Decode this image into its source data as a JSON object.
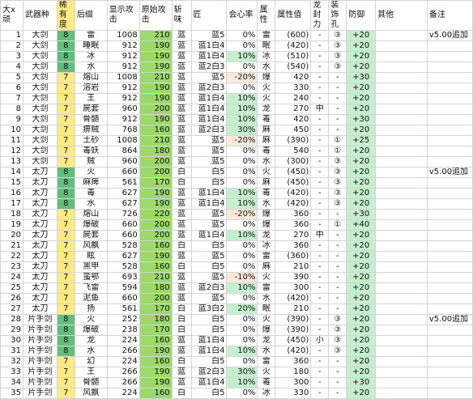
{
  "colors": {
    "rarity8": "#63be7b",
    "rarity7": "#ffeb84",
    "attack_orig": "#9bd96a",
    "affinity_pos": "#c6efce",
    "affinity_neg": "#fde9d9",
    "defense": "#c6efce"
  },
  "headers": [
    "大x顽",
    "武器种",
    "稀有度",
    "后缀",
    "显示攻击",
    "原始攻击",
    "斩味",
    "匠",
    "会心率",
    "属性",
    "属性值",
    "龙封力",
    "装饰孔",
    "防御",
    "其他",
    "备注"
  ],
  "rows": [
    [
      "1",
      "大剑",
      "8",
      "雷",
      "1008",
      "210",
      "蓝",
      "蓝5",
      "0%",
      "雷",
      "(600)",
      "-",
      "③",
      "+20",
      "",
      "v5.00追加"
    ],
    [
      "2",
      "大剑",
      "8",
      "睡眠",
      "912",
      "190",
      "蓝",
      "蓝1白4",
      "0%",
      "眠",
      "(420)",
      "-",
      "③",
      "+20",
      "",
      ""
    ],
    [
      "3",
      "大剑",
      "8",
      "冰",
      "912",
      "190",
      "蓝",
      "蓝1白4",
      "10%",
      "冰",
      "(510)",
      "-",
      "③",
      "+20",
      "",
      ""
    ],
    [
      "4",
      "大剑",
      "8",
      "水",
      "912",
      "190",
      "蓝",
      "蓝2白3",
      "0%",
      "水",
      "(540)",
      "-",
      "③",
      "+20",
      "",
      ""
    ],
    [
      "5",
      "大剑",
      "7",
      "熔山",
      "1008",
      "210",
      "蓝",
      "蓝5",
      "-20%",
      "爆",
      "420",
      "-",
      "-",
      "+30",
      "",
      ""
    ],
    [
      "6",
      "大剑",
      "7",
      "溶岩",
      "912",
      "190",
      "蓝",
      "蓝2白3",
      "0%",
      "火",
      "330",
      "-",
      "-",
      "+20",
      "",
      ""
    ],
    [
      "7",
      "大剑",
      "7",
      "王",
      "912",
      "190",
      "蓝",
      "蓝1白4",
      "10%",
      "火",
      "240",
      "-",
      "-",
      "+20",
      "",
      ""
    ],
    [
      "8",
      "大剑",
      "7",
      "屍套",
      "960",
      "200",
      "蓝",
      "蓝1白4",
      "10%",
      "龙",
      "270",
      "中",
      "-",
      "+20",
      "",
      ""
    ],
    [
      "9",
      "大剑",
      "7",
      "骨髄",
      "912",
      "190",
      "蓝",
      "蓝1白4",
      "10%",
      "毒",
      "420",
      "-",
      "-",
      "+30",
      "",
      ""
    ],
    [
      "10",
      "大剑",
      "7",
      "痹贼",
      "768",
      "160",
      "蓝",
      "蓝2白3",
      "30%",
      "麻",
      "450",
      "-",
      "-",
      "+20",
      "",
      ""
    ],
    [
      "11",
      "大剑",
      "7",
      "土砂",
      "1008",
      "210",
      "蓝",
      "蓝5",
      "-20%",
      "麻",
      "(390)",
      "-",
      "①",
      "+25",
      "",
      ""
    ],
    [
      "12",
      "大剑",
      "7",
      "毒妖",
      "864",
      "180",
      "蓝",
      "蓝5",
      "0%",
      "毒",
      "540",
      "-",
      "①",
      "+20",
      "",
      ""
    ],
    [
      "13",
      "大剑",
      "7",
      "贼",
      "960",
      "200",
      "蓝",
      "蓝5",
      "0%",
      "水",
      "(300)",
      "-",
      "③",
      "+20",
      "",
      ""
    ],
    [
      "14",
      "太刀",
      "8",
      "火",
      "660",
      "200",
      "白",
      "白5",
      "0%",
      "火",
      "(450)",
      "-",
      "③",
      "+20",
      "",
      "v5.00追加"
    ],
    [
      "15",
      "太刀",
      "8",
      "麻痺",
      "561",
      "170",
      "白",
      "白5",
      "0%",
      "麻",
      "(450)",
      "-",
      "③",
      "+20",
      "",
      ""
    ],
    [
      "16",
      "太刀",
      "8",
      "毒",
      "627",
      "190",
      "蓝",
      "蓝1白4",
      "10%",
      "毒",
      "(420)",
      "-",
      "③",
      "+20",
      "",
      ""
    ],
    [
      "17",
      "太刀",
      "8",
      "水",
      "627",
      "190",
      "蓝",
      "蓝1白4",
      "10%",
      "水",
      "(420)",
      "-",
      "③",
      "+20",
      "",
      ""
    ],
    [
      "18",
      "太刀",
      "7",
      "熔山",
      "726",
      "220",
      "蓝",
      "蓝5",
      "-20%",
      "爆",
      "360",
      "-",
      "-",
      "+30",
      "",
      ""
    ],
    [
      "19",
      "太刀",
      "7",
      "爆破",
      "660",
      "200",
      "蓝",
      "蓝5",
      "0%",
      "爆",
      "360",
      "-",
      "①",
      "+40",
      "",
      ""
    ],
    [
      "20",
      "太刀",
      "7",
      "屍套",
      "660",
      "200",
      "蓝",
      "蓝1白4",
      "10%",
      "龙",
      "270",
      "中",
      "-",
      "+20",
      "",
      ""
    ],
    [
      "21",
      "太刀",
      "7",
      "风飘",
      "528",
      "160",
      "白",
      "白5",
      "0%",
      "冰",
      "360",
      "-",
      "-",
      "+20",
      "",
      ""
    ],
    [
      "22",
      "太刀",
      "7",
      "眩",
      "627",
      "190",
      "蓝",
      "蓝5",
      "0%",
      "雷",
      "(360)",
      "-",
      "-",
      "+20",
      "",
      ""
    ],
    [
      "23",
      "太刀",
      "7",
      "黑甲",
      "528",
      "160",
      "白",
      "白5",
      "0%",
      "麻",
      "210",
      "-",
      "-",
      "+20",
      "",
      ""
    ],
    [
      "24",
      "太刀",
      "7",
      "蛮鄂",
      "693",
      "210",
      "蓝",
      "蓝5",
      "-10%",
      "火",
      "390",
      "-",
      "-",
      "+20",
      "",
      ""
    ],
    [
      "25",
      "太刀",
      "7",
      "飞雷",
      "594",
      "180",
      "蓝",
      "蓝2白3",
      "10%",
      "雷",
      "300",
      "-",
      "-",
      "+20",
      "",
      ""
    ],
    [
      "26",
      "太刀",
      "7",
      "泥鱼",
      "660",
      "200",
      "蓝",
      "蓝5",
      "0%",
      "水",
      "(420)",
      "-",
      "-",
      "+20",
      "",
      ""
    ],
    [
      "27",
      "太刀",
      "7",
      "扬",
      "561",
      "170",
      "白",
      "蓝3白2",
      "20%",
      "眠",
      "210",
      "-",
      "-",
      "+20",
      "",
      ""
    ],
    [
      "28",
      "片手剑",
      "8",
      "火",
      "252",
      "180",
      "白",
      "白5",
      "0%",
      "火",
      "(390)",
      "-",
      "③",
      "+20",
      "",
      "v5.00追加"
    ],
    [
      "29",
      "片手剑",
      "8",
      "爆破",
      "238",
      "170",
      "白",
      "白5",
      "0%",
      "爆",
      "(390)",
      "-",
      "③",
      "+20",
      "",
      ""
    ],
    [
      "30",
      "片手剑",
      "8",
      "龙",
      "224",
      "160",
      "蓝",
      "蓝1白4",
      "0%",
      "龙",
      "(450)",
      "小",
      "③",
      "+20",
      "",
      ""
    ],
    [
      "31",
      "片手剑",
      "8",
      "水",
      "266",
      "190",
      "蓝",
      "蓝1白4",
      "10%",
      "水",
      "(420)",
      "-",
      "③",
      "+20",
      "",
      ""
    ],
    [
      "32",
      "片手剑",
      "7",
      "幻",
      "224",
      "160",
      "白",
      "白5",
      "0%",
      "雷",
      "360",
      "-",
      "-",
      "+20",
      "",
      ""
    ],
    [
      "33",
      "片手剑",
      "7",
      "王",
      "266",
      "190",
      "蓝",
      "蓝2白3",
      "30%",
      "火",
      "180",
      "-",
      "-",
      "+20",
      "",
      ""
    ],
    [
      "34",
      "片手剑",
      "7",
      "骨髄",
      "266",
      "190",
      "蓝",
      "蓝1白4",
      "10%",
      "毒",
      "300",
      "-",
      "-",
      "+30",
      "",
      ""
    ],
    [
      "35",
      "片手剑",
      "7",
      "风飘",
      "224",
      "160",
      "白",
      "白5",
      "0%",
      "冰",
      "330",
      "-",
      "-",
      "+20",
      "",
      ""
    ]
  ]
}
